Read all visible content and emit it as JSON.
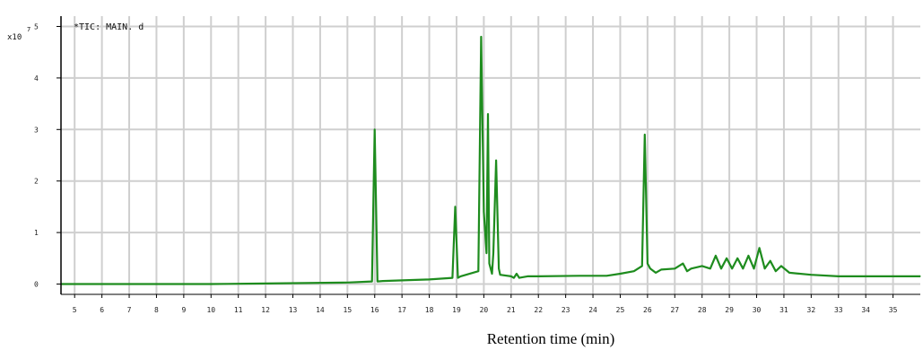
{
  "chart_data": {
    "type": "line",
    "title": "",
    "legend_text": "*TIC: MAIN. d",
    "y_unit_label": "x10",
    "xlabel": "Retention time (min)",
    "ylabel": "",
    "xlim": [
      4.5,
      36
    ],
    "ylim": [
      -0.2,
      5.2
    ],
    "x_ticks": [
      5,
      6,
      7,
      8,
      9,
      10,
      11,
      12,
      13,
      14,
      15,
      16,
      17,
      18,
      19,
      20,
      21,
      22,
      23,
      24,
      25,
      26,
      27,
      28,
      29,
      30,
      31,
      32,
      33,
      34,
      35
    ],
    "y_ticks": [
      0,
      1,
      2,
      3,
      4,
      5
    ],
    "grid": true,
    "color": "#1e8c1e",
    "series": [
      {
        "name": "",
        "x": [
          4.5,
          10.0,
          12.0,
          13.5,
          15.0,
          15.9,
          16.0,
          16.1,
          16.3,
          17.5,
          18.0,
          18.85,
          18.95,
          19.05,
          19.15,
          19.8,
          19.9,
          20.0,
          20.1,
          20.15,
          20.2,
          20.3,
          20.35,
          20.45,
          20.55,
          20.6,
          21.0,
          21.1,
          21.2,
          21.3,
          21.6,
          22.0,
          23.5,
          24.5,
          25.0,
          25.5,
          25.8,
          25.9,
          26.0,
          26.1,
          26.3,
          26.5,
          27.0,
          27.3,
          27.45,
          27.6,
          28.0,
          28.3,
          28.5,
          28.7,
          28.9,
          29.1,
          29.3,
          29.5,
          29.7,
          29.9,
          30.1,
          30.3,
          30.5,
          30.7,
          30.9,
          31.2,
          32.0,
          33.0,
          34.0,
          35.0,
          36.0
        ],
        "y": [
          0.0,
          0.0,
          0.01,
          0.02,
          0.03,
          0.05,
          3.0,
          0.05,
          0.06,
          0.08,
          0.09,
          0.12,
          1.5,
          0.12,
          0.15,
          0.25,
          4.8,
          1.4,
          0.6,
          3.3,
          0.4,
          0.2,
          0.6,
          2.4,
          0.3,
          0.18,
          0.15,
          0.12,
          0.2,
          0.12,
          0.15,
          0.15,
          0.16,
          0.16,
          0.2,
          0.25,
          0.35,
          2.9,
          0.4,
          0.3,
          0.22,
          0.28,
          0.3,
          0.4,
          0.25,
          0.3,
          0.35,
          0.3,
          0.55,
          0.3,
          0.5,
          0.3,
          0.5,
          0.3,
          0.55,
          0.3,
          0.7,
          0.3,
          0.45,
          0.25,
          0.35,
          0.22,
          0.18,
          0.15,
          0.15,
          0.15,
          0.15
        ]
      }
    ]
  }
}
